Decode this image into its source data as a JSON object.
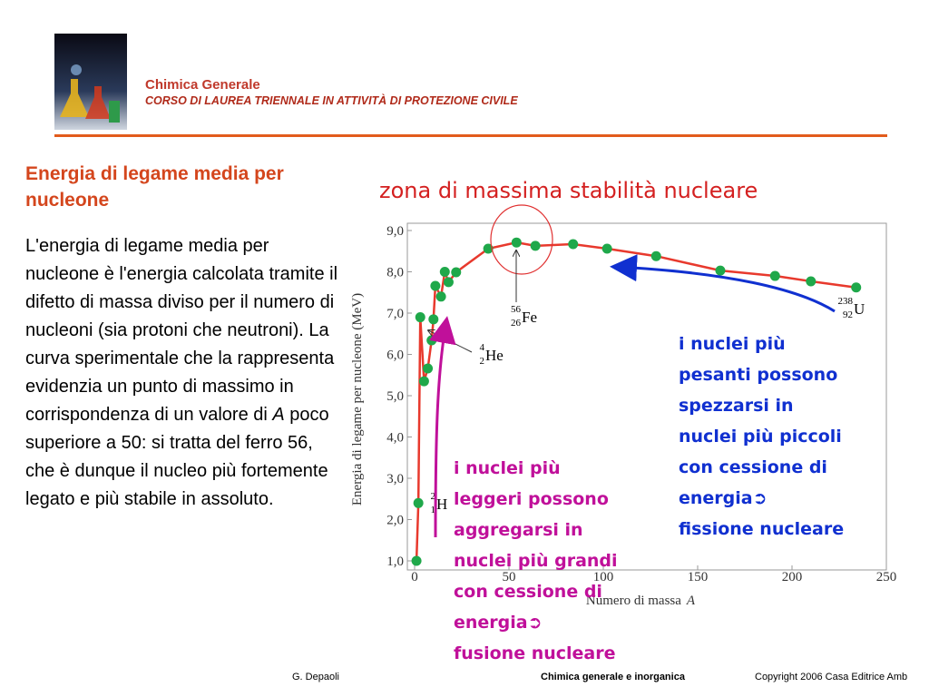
{
  "header": {
    "title": "Chimica Generale",
    "subtitle": "CORSO DI LAUREA TRIENNALE IN ATTIVITÀ DI PROTEZIONE CIVILE"
  },
  "section": {
    "heading": "Energia di legame media per nucleone",
    "body": [
      "L'energia di legame media per nucleone è l'energia calcolata tramite il difetto di massa diviso per il numero di nucleoni (sia protoni che neutroni). La curva sperimentale che la rappresenta evidenzia un punto di massimo in corrispondenza di un valore di ",
      "A",
      " poco superiore a 50: si tratta del ferro 56, che è dunque il nucleo più fortemente legato e più stabile in assoluto."
    ]
  },
  "zone_title": "zona di massima stabilità nucleare",
  "fission_note": [
    "i nuclei più",
    "pesanti possono",
    "spezzarsi in",
    "nuclei più piccoli",
    "con cessione di",
    "energia➲",
    "fissione nucleare"
  ],
  "fusion_note": [
    "i nuclei più",
    "leggeri possono",
    "aggregarsi in",
    "nuclei più grandi",
    "con cessione di",
    "energia➲",
    "fusione nucleare"
  ],
  "footer": {
    "author": "G. Depaoli",
    "course": "Chimica generale e inorganica",
    "copyright": "Copyright 2006 Casa Editrice Amb"
  },
  "chart_data": {
    "type": "scatter",
    "x_label": "Numero di massa",
    "x_label_var": "A",
    "y_label": "Energia di legame per nucleone (MeV)",
    "xlim": [
      0,
      250
    ],
    "ylim": [
      1,
      9
    ],
    "xticks": [
      0,
      50,
      100,
      150,
      200,
      250
    ],
    "yticks": [
      {
        "value": 1,
        "label": "1,0"
      },
      {
        "value": 2,
        "label": "2,0"
      },
      {
        "value": 3,
        "label": "3,0"
      },
      {
        "value": 4,
        "label": "4,0"
      },
      {
        "value": 5,
        "label": "5,0"
      },
      {
        "value": 6,
        "label": "6,0"
      },
      {
        "value": 7,
        "label": "7,0"
      },
      {
        "value": 8,
        "label": "8,0"
      },
      {
        "value": 9,
        "label": "9,0"
      }
    ],
    "series": [
      {
        "color": "#1fa84a",
        "line_color": "#e8392d",
        "x": [
          1,
          2,
          3,
          5,
          7,
          9,
          10,
          11,
          14,
          16,
          18,
          22,
          39,
          54,
          64,
          84,
          102,
          128,
          162,
          191,
          210,
          234
        ],
        "values": [
          1.0,
          2.4,
          6.9,
          5.35,
          5.66,
          6.34,
          6.85,
          7.66,
          7.4,
          8.0,
          7.75,
          7.99,
          8.56,
          8.71,
          8.63,
          8.67,
          8.56,
          8.38,
          8.03,
          7.9,
          7.77,
          7.62
        ]
      }
    ],
    "annotations": [
      {
        "mass": "56",
        "z": "26",
        "symbol": "Fe"
      },
      {
        "mass": "4",
        "z": "2",
        "symbol": "He"
      },
      {
        "mass": "238",
        "z": "92",
        "symbol": "U"
      },
      {
        "mass": "2",
        "z": "1",
        "symbol": "H"
      }
    ]
  }
}
